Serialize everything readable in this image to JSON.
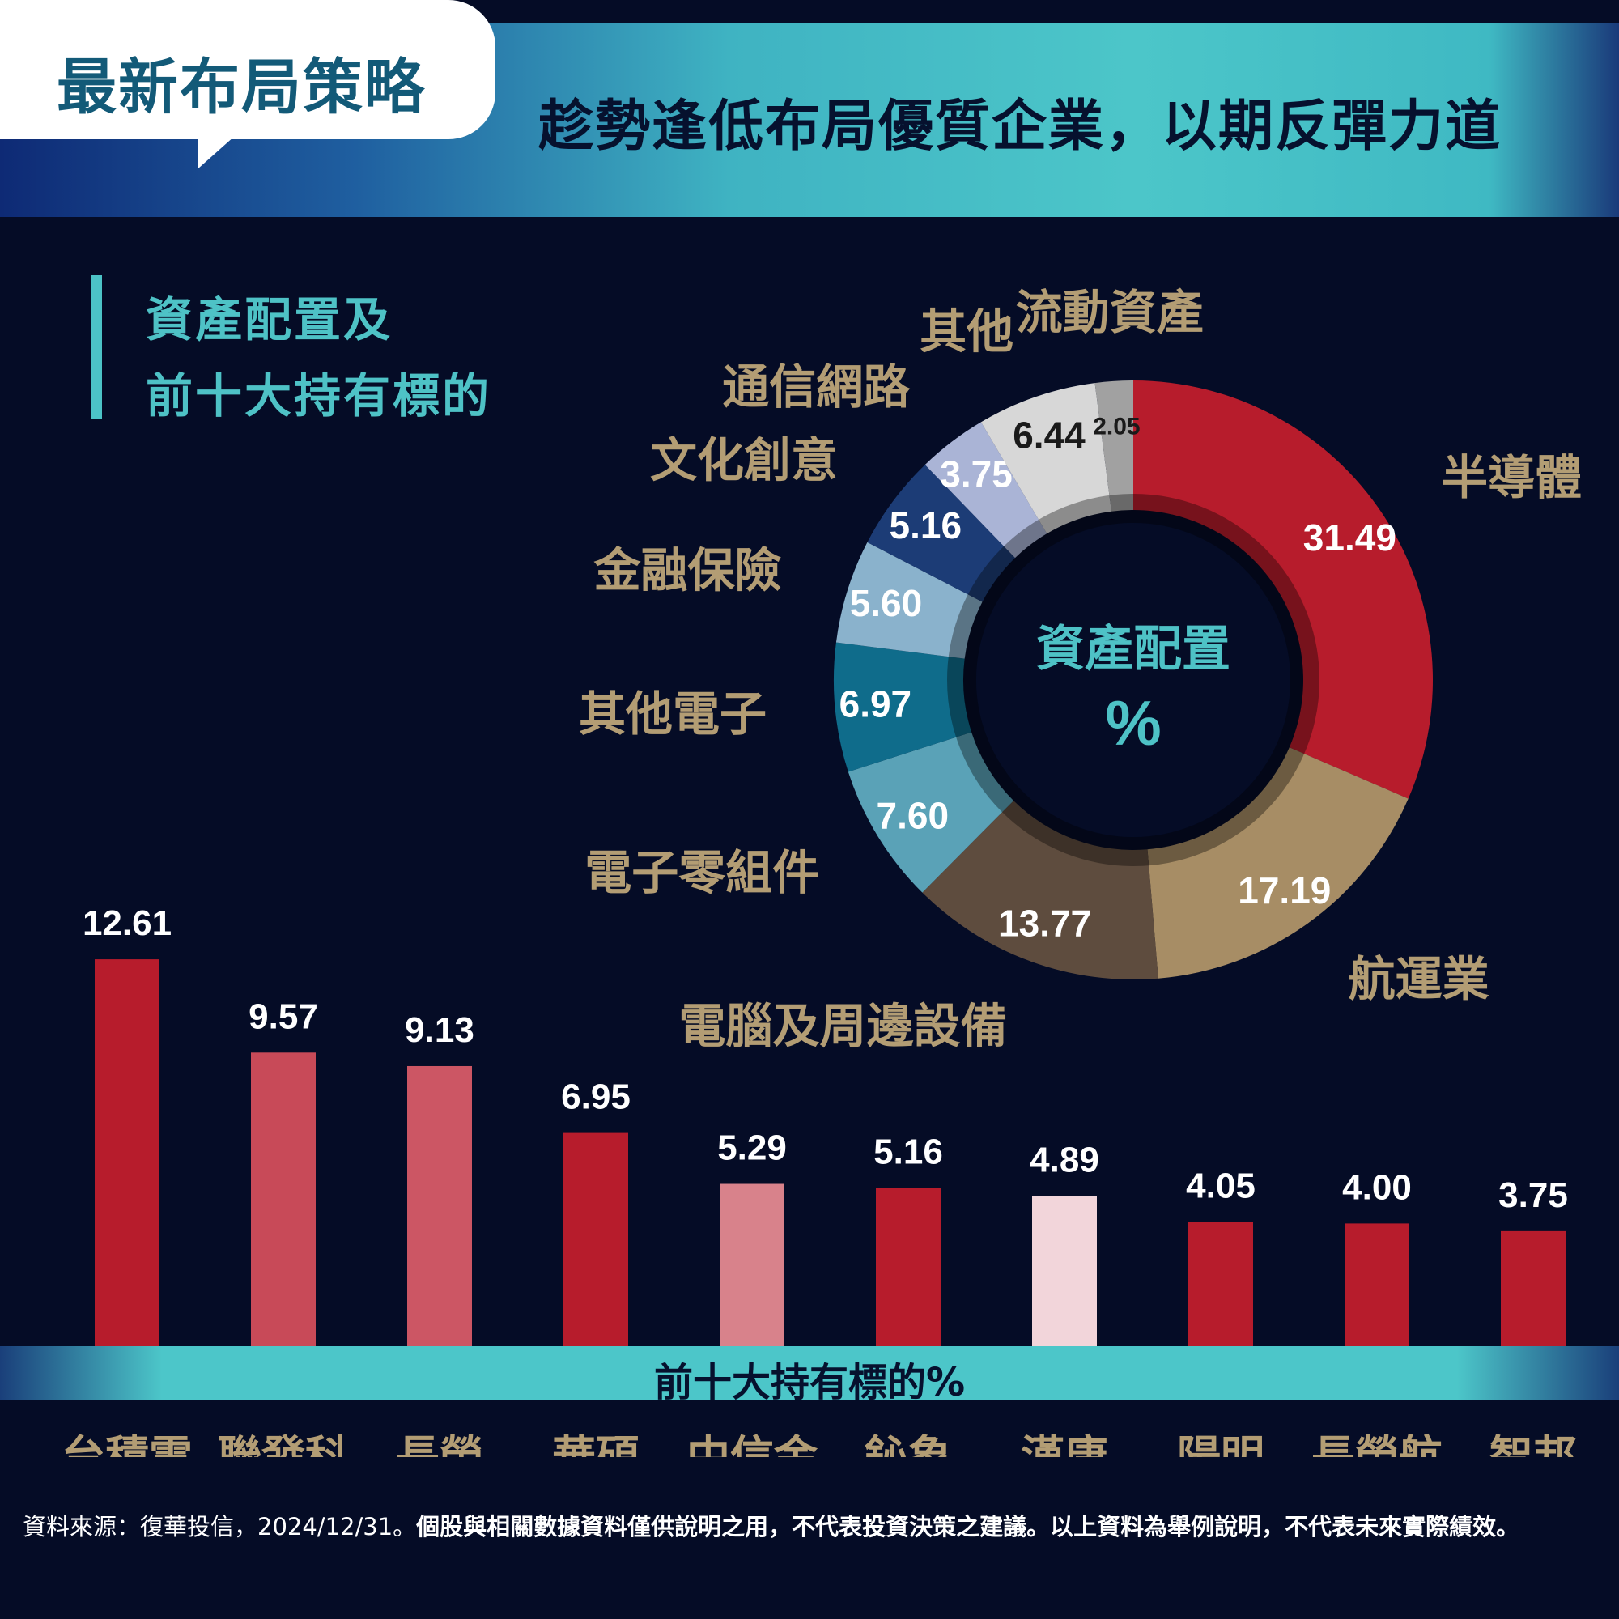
{
  "header": {
    "tag": "最新布局策略",
    "headline": "趁勢逢低布局優質企業，以期反彈力道"
  },
  "section": {
    "title_line1": "資產配置及",
    "title_line2": "前十大持有標的"
  },
  "colors": {
    "label_gold": "#b39d74",
    "teal": "#4ec2c6",
    "background": "#050c26"
  },
  "chart_data": [
    {
      "type": "pie",
      "center_label": "資產配置",
      "center_unit": "%",
      "slices": [
        {
          "label": "半導體",
          "value": 31.49,
          "display": "31.49",
          "color": "#b71c2c"
        },
        {
          "label": "航運業",
          "value": 17.19,
          "display": "17.19",
          "color": "#a78d65"
        },
        {
          "label": "電腦及周邊設備",
          "value": 13.77,
          "display": "13.77",
          "color": "#5e4c3e"
        },
        {
          "label": "電子零組件",
          "value": 7.6,
          "display": "7.60",
          "color": "#5aa2b7"
        },
        {
          "label": "其他電子",
          "value": 6.97,
          "display": "6.97",
          "color": "#0f6c8b"
        },
        {
          "label": "金融保險",
          "value": 5.6,
          "display": "5.60",
          "color": "#8ab2cc"
        },
        {
          "label": "文化創意",
          "value": 5.16,
          "display": "5.16",
          "color": "#1c3c76"
        },
        {
          "label": "通信網路",
          "value": 3.75,
          "display": "3.75",
          "color": "#aab4d6"
        },
        {
          "label": "其他",
          "value": 6.44,
          "display": "6.44",
          "color": "#d7d7d7"
        },
        {
          "label": "流動資產",
          "value": 2.05,
          "display": "2.05",
          "color": "#a1a1a1"
        }
      ]
    },
    {
      "type": "bar",
      "title": "前十大持有標的%",
      "categories": [
        "台積電",
        "聯發科",
        "長榮",
        "華碩",
        "中信金",
        "鈊象",
        "漢唐",
        "陽明",
        "長榮航",
        "智邦"
      ],
      "values": [
        12.61,
        9.57,
        9.13,
        6.95,
        5.29,
        5.16,
        4.89,
        4.05,
        4.0,
        3.75
      ],
      "value_labels": [
        "12.61",
        "9.57",
        "9.13",
        "6.95",
        "5.29",
        "5.16",
        "4.89",
        "4.05",
        "4.00",
        "3.75"
      ],
      "colors": [
        "#b71c2c",
        "#c84a58",
        "#cc5664",
        "#b71c2c",
        "#d8828b",
        "#b71c2c",
        "#f2d5da",
        "#b71c2c",
        "#b71c2c",
        "#b71c2c"
      ]
    }
  ],
  "footnote": {
    "source": "資料來源：復華投信，2024/12/31。",
    "disclaimer": "個股與相關數據資料僅供說明之用，不代表投資決策之建議。以上資料為舉例說明，不代表未來實際績效。"
  }
}
